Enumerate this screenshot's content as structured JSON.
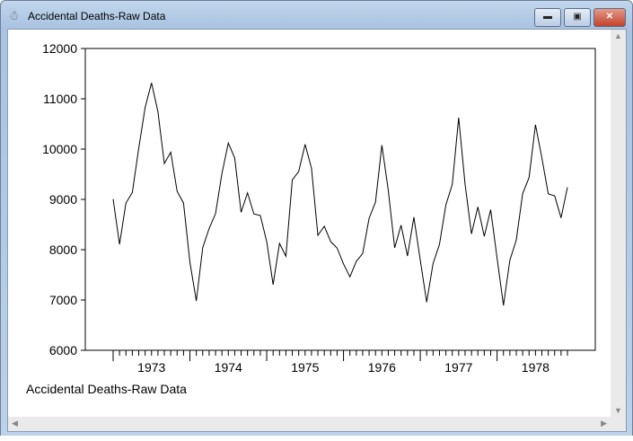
{
  "window": {
    "title": "Accidental Deaths-Raw Data",
    "icon": "app-icon",
    "buttons": [
      "minimize",
      "maximize",
      "close"
    ]
  },
  "chart_data": {
    "type": "line",
    "title": "",
    "caption": "Accidental Deaths-Raw Data",
    "xlabel": "",
    "ylabel": "",
    "ylim": [
      6000,
      12000
    ],
    "yticks": [
      "6000",
      "7000",
      "8000",
      "9000",
      "10000",
      "11000",
      "12000"
    ],
    "xtick_labels": [
      "1973",
      "1974",
      "1975",
      "1976",
      "1977",
      "1978"
    ],
    "x_start": "1973-01",
    "frequency": "monthly",
    "grid": false,
    "values": [
      9007,
      8106,
      8928,
      9137,
      10017,
      10826,
      11317,
      10744,
      9713,
      9938,
      9161,
      8927,
      7750,
      6981,
      8038,
      8422,
      8714,
      9512,
      10120,
      9823,
      8743,
      9129,
      8710,
      8680,
      8162,
      7306,
      8124,
      7870,
      9387,
      9556,
      10093,
      9620,
      8285,
      8466,
      8160,
      8034,
      7717,
      7461,
      7767,
      7925,
      8623,
      8945,
      10078,
      9179,
      8037,
      8488,
      7874,
      8647,
      7792,
      6957,
      7726,
      8106,
      8890,
      9299,
      10625,
      9302,
      8314,
      8850,
      8265,
      8796,
      7836,
      6892,
      7791,
      8192,
      9115,
      9434,
      10484,
      9827,
      9110,
      9070,
      8633,
      9240
    ],
    "line_color": "#000000"
  }
}
